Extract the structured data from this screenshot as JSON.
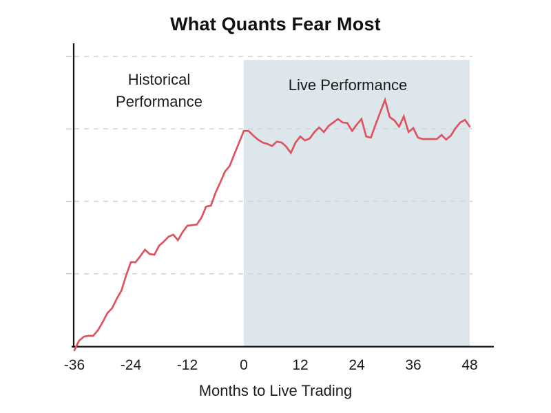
{
  "title": "What Quants Fear Most",
  "chart_data": {
    "type": "line",
    "title": "What Quants Fear Most",
    "xlabel": "Months to Live Trading",
    "ylabel": "",
    "x_ticks": [
      -36,
      -24,
      -12,
      0,
      12,
      24,
      36,
      48
    ],
    "x_range": [
      -36,
      48
    ],
    "y_range": [
      0,
      1.04
    ],
    "gridlines_y": [
      0.25,
      0.5,
      0.75,
      1.0
    ],
    "grid": "horizontal-dashed",
    "legend": "none",
    "y_tick_labels": "none",
    "colors": {
      "line": "#dd5360",
      "shade": "#dde6eb",
      "grid": "#d2d2d2",
      "axis": "#111111",
      "text": "#1c1c1c"
    },
    "annotations": [
      {
        "text": "Historical Performance",
        "lines": [
          "Historical",
          "Performance"
        ],
        "region": "historical"
      },
      {
        "text": "Live Performance",
        "lines": [
          "Live Performance"
        ],
        "region": "live"
      }
    ],
    "regions": [
      {
        "name": "live-shade",
        "from_month": 0,
        "to_month": 48,
        "top_value": 0.988,
        "color": "#dde6eb"
      }
    ],
    "series": [
      {
        "name": "strategy-performance",
        "color": "#dd5360",
        "points": [
          [
            -36,
            -0.014
          ],
          [
            -35,
            0.019
          ],
          [
            -34,
            0.033
          ],
          [
            -33,
            0.036
          ],
          [
            -32,
            0.036
          ],
          [
            -31,
            0.055
          ],
          [
            -30,
            0.083
          ],
          [
            -29,
            0.114
          ],
          [
            -28,
            0.131
          ],
          [
            -27,
            0.164
          ],
          [
            -26,
            0.192
          ],
          [
            -25,
            0.245
          ],
          [
            -24,
            0.29
          ],
          [
            -23,
            0.29
          ],
          [
            -22,
            0.311
          ],
          [
            -21,
            0.333
          ],
          [
            -20,
            0.318
          ],
          [
            -19,
            0.316
          ],
          [
            -18,
            0.347
          ],
          [
            -17,
            0.361
          ],
          [
            -16,
            0.378
          ],
          [
            -15,
            0.385
          ],
          [
            -14,
            0.366
          ],
          [
            -13,
            0.394
          ],
          [
            -12,
            0.416
          ],
          [
            -11,
            0.418
          ],
          [
            -10,
            0.42
          ],
          [
            -9,
            0.444
          ],
          [
            -8,
            0.482
          ],
          [
            -7,
            0.485
          ],
          [
            -6,
            0.53
          ],
          [
            -5,
            0.565
          ],
          [
            -4,
            0.603
          ],
          [
            -3,
            0.622
          ],
          [
            -2,
            0.663
          ],
          [
            -1,
            0.703
          ],
          [
            0,
            0.743
          ],
          [
            1,
            0.743
          ],
          [
            2,
            0.727
          ],
          [
            3,
            0.713
          ],
          [
            4,
            0.703
          ],
          [
            5,
            0.698
          ],
          [
            6,
            0.691
          ],
          [
            7,
            0.706
          ],
          [
            8,
            0.703
          ],
          [
            9,
            0.689
          ],
          [
            10,
            0.667
          ],
          [
            11,
            0.703
          ],
          [
            12,
            0.724
          ],
          [
            13,
            0.71
          ],
          [
            14,
            0.717
          ],
          [
            15,
            0.739
          ],
          [
            16,
            0.755
          ],
          [
            17,
            0.739
          ],
          [
            18,
            0.76
          ],
          [
            19,
            0.772
          ],
          [
            20,
            0.784
          ],
          [
            21,
            0.772
          ],
          [
            22,
            0.77
          ],
          [
            23,
            0.743
          ],
          [
            24,
            0.765
          ],
          [
            25,
            0.784
          ],
          [
            26,
            0.724
          ],
          [
            27,
            0.72
          ],
          [
            28,
            0.765
          ],
          [
            29,
            0.808
          ],
          [
            30,
            0.85
          ],
          [
            31,
            0.791
          ],
          [
            32,
            0.779
          ],
          [
            33,
            0.758
          ],
          [
            34,
            0.793
          ],
          [
            35,
            0.739
          ],
          [
            36,
            0.753
          ],
          [
            37,
            0.72
          ],
          [
            38,
            0.715
          ],
          [
            39,
            0.715
          ],
          [
            40,
            0.715
          ],
          [
            41,
            0.715
          ],
          [
            42,
            0.729
          ],
          [
            43,
            0.713
          ],
          [
            44,
            0.727
          ],
          [
            45,
            0.753
          ],
          [
            46,
            0.772
          ],
          [
            47,
            0.781
          ],
          [
            48,
            0.758
          ]
        ]
      }
    ]
  }
}
